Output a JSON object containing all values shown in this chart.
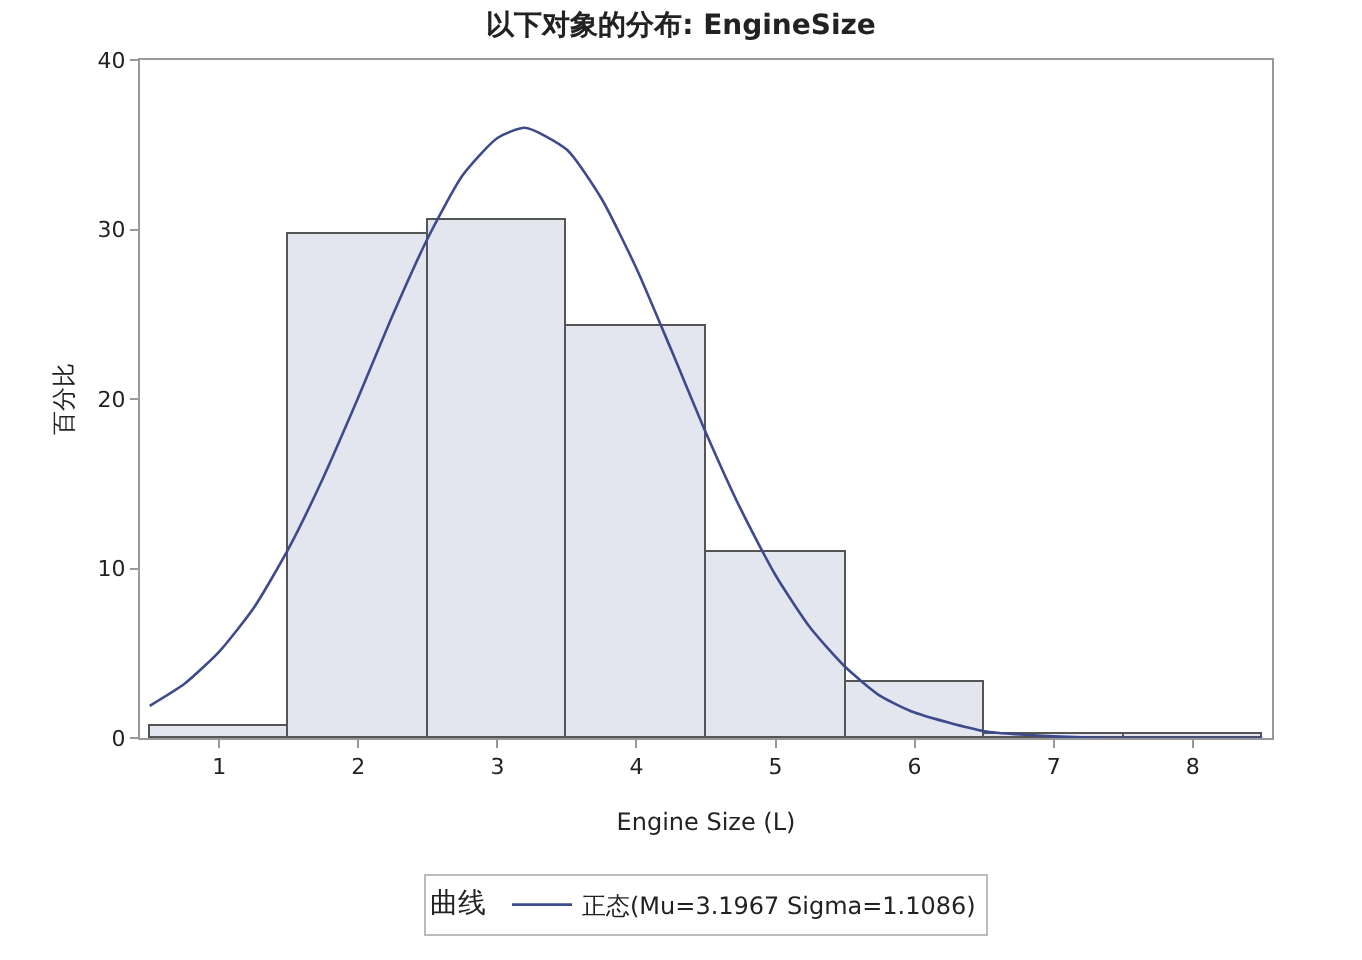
{
  "chart_data": {
    "type": "histogram",
    "title": "以下对象的分布: EngineSize",
    "xlabel": "Engine Size (L)",
    "ylabel": "百分比",
    "legend_title": "曲线",
    "bins": [
      0.5,
      1.5,
      2.5,
      3.5,
      4.5,
      5.5,
      6.5,
      7.5,
      8.5
    ],
    "values": [
      0.7,
      29.7,
      30.6,
      24.3,
      11.0,
      3.3,
      0.2,
      0.2
    ],
    "color": "#e3e6ef",
    "series": [
      {
        "type": "line",
        "name": "正态(Mu=3.1967 Sigma=1.1086)",
        "color": "#3d4a8c",
        "x": [
          0.5,
          0.75,
          1,
          1.25,
          1.5,
          1.75,
          2,
          2.25,
          2.5,
          2.75,
          3,
          3.2,
          3.5,
          3.75,
          4,
          4.25,
          4.5,
          4.75,
          5,
          5.25,
          5.5,
          5.75,
          6,
          6.5,
          7,
          7.5,
          8,
          8.5
        ],
        "values": [
          1.9,
          3.2,
          5.1,
          7.7,
          11.2,
          15.4,
          20.1,
          25.0,
          29.5,
          33.2,
          35.4,
          36.0,
          34.7,
          31.8,
          27.7,
          22.9,
          18.0,
          13.5,
          9.6,
          6.5,
          4.2,
          2.5,
          1.5,
          0.4,
          0.1,
          0,
          0,
          0
        ]
      }
    ],
    "xlim": [
      0.43,
      8.57
    ],
    "xticks": [
      1,
      2,
      3,
      4,
      5,
      6,
      7,
      8
    ],
    "ylim": [
      0,
      40
    ],
    "yticks": [
      0,
      10,
      20,
      30,
      40
    ],
    "grid": false,
    "legend": "bottom"
  }
}
